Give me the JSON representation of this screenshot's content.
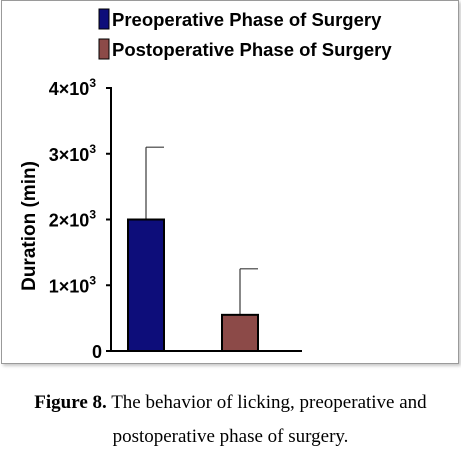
{
  "chart_data": {
    "type": "bar",
    "categories": [
      "Preoperative Phase of Surgery",
      "Postoperative Phase of Surgery"
    ],
    "values": [
      2000,
      550
    ],
    "errors": [
      1100,
      700
    ],
    "colors": [
      "#0d0d7a",
      "#8c4a48"
    ],
    "ylabel": "Duration (min)",
    "ylim": [
      0,
      4000
    ],
    "yticks": [
      {
        "value": 0,
        "base": "0",
        "exp": ""
      },
      {
        "value": 1000,
        "base": "1×10",
        "exp": "3"
      },
      {
        "value": 2000,
        "base": "2×10",
        "exp": "3"
      },
      {
        "value": 3000,
        "base": "3×10",
        "exp": "3"
      },
      {
        "value": 4000,
        "base": "4×10",
        "exp": "3"
      }
    ],
    "legend": {
      "position": "top",
      "entries": [
        "Preoperative Phase of Surgery",
        "Postoperative Phase of Surgery"
      ]
    },
    "grid": false
  },
  "caption": {
    "label": "Figure 8.",
    "text": " The behavior of licking, preoperative and postoperative phase of surgery."
  }
}
